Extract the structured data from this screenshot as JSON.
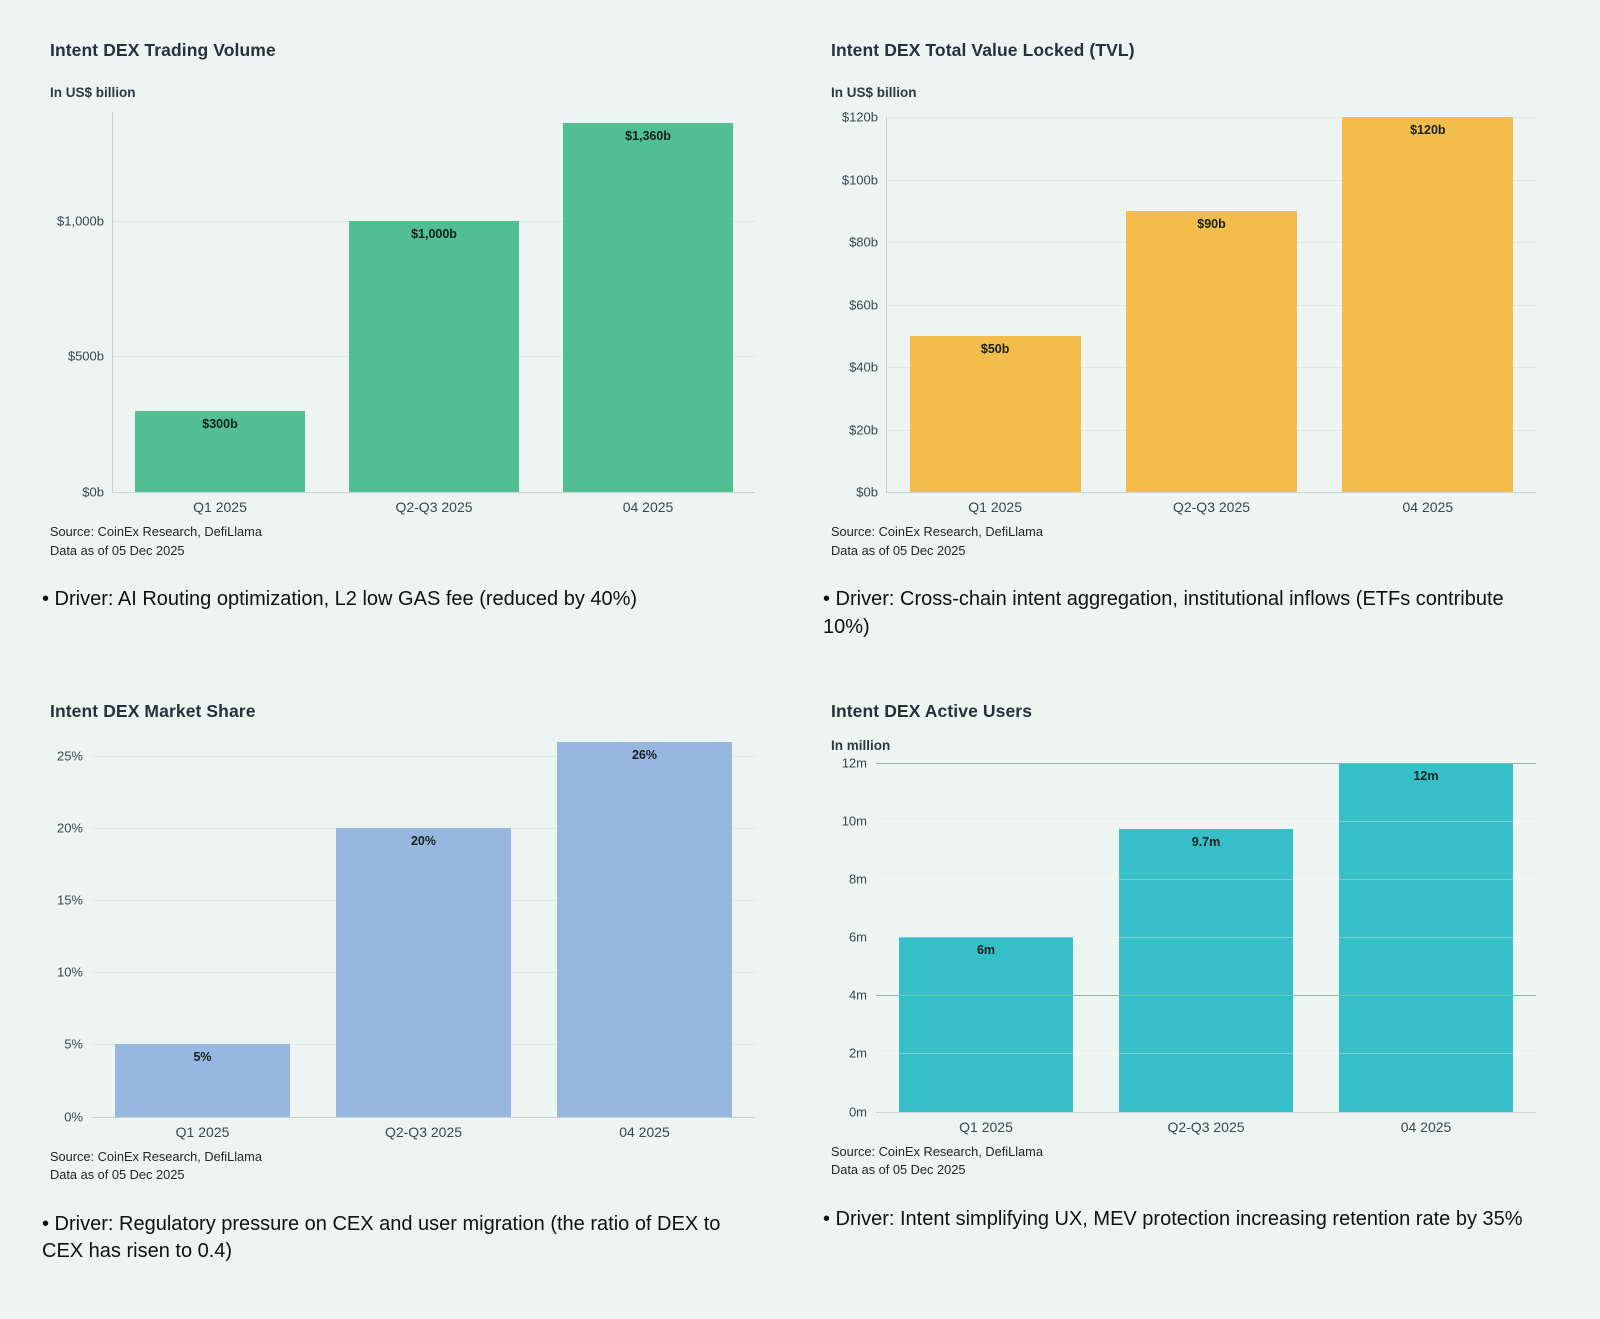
{
  "charts": [
    {
      "title": "Intent DEX Trading Volume",
      "unit": "In US$ billion",
      "source_line1": "Source: CoinEx Research, DefiLlama",
      "source_line2": "Data as of 05 Dec 2025",
      "driver": "• Driver: AI Routing optimization, L2 low GAS fee (reduced by 40%)"
    },
    {
      "title": "Intent DEX Total Value Locked (TVL)",
      "unit": "In US$ billion",
      "source_line1": "Source: CoinEx Research, DefiLlama",
      "source_line2": "Data as of 05 Dec 2025",
      "driver": "• Driver: Cross-chain intent aggregation, institutional inflows (ETFs contribute 10%)"
    },
    {
      "title": "Intent DEX Market Share",
      "unit": "",
      "source_line1": "Source: CoinEx Research, DefiLlama",
      "source_line2": "Data as of 05 Dec 2025",
      "driver": "• Driver: Regulatory pressure on CEX and user migration (the ratio of DEX to CEX has risen to 0.4)"
    },
    {
      "title": "Intent DEX Active Users",
      "unit": "In million",
      "source_line1": "Source: CoinEx Research, DefiLlama",
      "source_line2": "Data as of 05 Dec 2025",
      "driver": "• Driver: Intent simplifying UX, MEV protection increasing retention rate by 35%"
    }
  ],
  "chart_data": [
    {
      "type": "bar",
      "title": "Intent DEX Trading Volume",
      "ylabel": "In US$ billion",
      "categories": [
        "Q1 2025",
        "Q2-Q3 2025",
        "04 2025"
      ],
      "values": [
        300,
        1000,
        1360
      ],
      "value_labels": [
        "$300b",
        "$1,000b",
        "$1,360b"
      ],
      "ylim": [
        0,
        1400
      ],
      "yticks": [
        {
          "value": 0,
          "label": "$0b"
        },
        {
          "value": 500,
          "label": "$500b"
        },
        {
          "value": 1000,
          "label": "$1,000b"
        }
      ],
      "bar_color": "#52be93",
      "vertical_axis": true,
      "grid_over_bars": false,
      "strong_ticks": []
    },
    {
      "type": "bar",
      "title": "Intent DEX Total Value Locked (TVL)",
      "ylabel": "In US$ billion",
      "categories": [
        "Q1 2025",
        "Q2-Q3 2025",
        "04 2025"
      ],
      "values": [
        50,
        90,
        120
      ],
      "value_labels": [
        "$50b",
        "$90b",
        "$120b"
      ],
      "ylim": [
        0,
        120
      ],
      "yticks": [
        {
          "value": 0,
          "label": "$0b"
        },
        {
          "value": 20,
          "label": "$20b"
        },
        {
          "value": 40,
          "label": "$40b"
        },
        {
          "value": 60,
          "label": "$60b"
        },
        {
          "value": 80,
          "label": "$80b"
        },
        {
          "value": 100,
          "label": "$100b"
        },
        {
          "value": 120,
          "label": "$120b"
        }
      ],
      "bar_color": "#f2bd4a",
      "vertical_axis": true,
      "grid_over_bars": false,
      "strong_ticks": []
    },
    {
      "type": "bar",
      "title": "Intent DEX Market Share",
      "ylabel": "",
      "categories": [
        "Q1 2025",
        "Q2-Q3 2025",
        "04 2025"
      ],
      "values": [
        5,
        20,
        26
      ],
      "value_labels": [
        "5%",
        "20%",
        "26%"
      ],
      "ylim": [
        0,
        26
      ],
      "yticks": [
        {
          "value": 0,
          "label": "0%"
        },
        {
          "value": 5,
          "label": "5%"
        },
        {
          "value": 10,
          "label": "10%"
        },
        {
          "value": 15,
          "label": "15%"
        },
        {
          "value": 20,
          "label": "20%"
        },
        {
          "value": 25,
          "label": "25%"
        }
      ],
      "bar_color": "#98b7e0",
      "vertical_axis": false,
      "grid_over_bars": false,
      "strong_ticks": []
    },
    {
      "type": "bar",
      "title": "Intent DEX Active Users",
      "ylabel": "In million",
      "categories": [
        "Q1 2025",
        "Q2-Q3 2025",
        "04 2025"
      ],
      "values": [
        6,
        9.7,
        12
      ],
      "value_labels": [
        "6m",
        "9.7m",
        "12m"
      ],
      "ylim": [
        0,
        12
      ],
      "yticks": [
        {
          "value": 0,
          "label": "0m"
        },
        {
          "value": 2,
          "label": "2m"
        },
        {
          "value": 4,
          "label": "4m"
        },
        {
          "value": 6,
          "label": "6m"
        },
        {
          "value": 8,
          "label": "8m"
        },
        {
          "value": 10,
          "label": "10m"
        },
        {
          "value": 12,
          "label": "12m"
        }
      ],
      "bar_color": "#36bfc9",
      "vertical_axis": false,
      "grid_over_bars": true,
      "strong_ticks": [
        4,
        12
      ]
    }
  ]
}
